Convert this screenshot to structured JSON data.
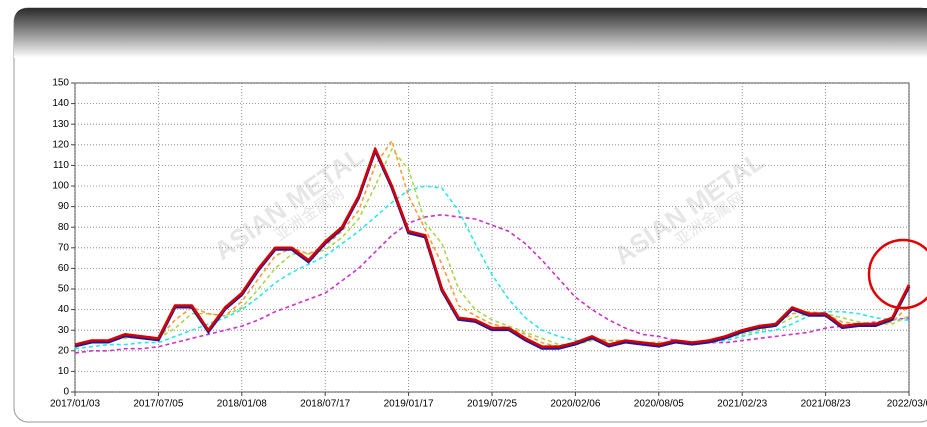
{
  "chart_data": {
    "type": "line",
    "watermark": "ASIAN METAL",
    "watermark_cn": "亚洲金属网",
    "categories": [
      "2017/01/03",
      null,
      null,
      null,
      null,
      "2017/07/05",
      null,
      null,
      null,
      null,
      "2018/01/08",
      null,
      null,
      null,
      null,
      "2018/07/17",
      null,
      null,
      null,
      null,
      "2019/01/17",
      null,
      null,
      null,
      null,
      "2019/07/25",
      null,
      null,
      null,
      null,
      "2020/02/06",
      null,
      null,
      null,
      null,
      "2020/08/05",
      null,
      null,
      null,
      null,
      "2021/02/23",
      null,
      null,
      null,
      null,
      "2021/08/23",
      null,
      null,
      null,
      null,
      "2022/03/0"
    ],
    "ylim": [
      0,
      150
    ],
    "yticks": [
      0,
      10,
      20,
      30,
      40,
      50,
      60,
      70,
      80,
      90,
      100,
      110,
      120,
      130,
      140,
      150
    ],
    "grid": true,
    "series": [
      {
        "color": "#cc33cc",
        "dashed": true,
        "values": [
          19,
          20,
          20,
          21,
          21,
          22,
          24,
          26,
          28,
          30,
          32,
          35,
          39,
          42,
          45,
          48,
          54,
          60,
          68,
          76,
          82,
          85,
          86,
          85,
          84,
          81,
          78,
          72,
          64,
          55,
          46,
          40,
          35,
          31,
          28,
          27,
          25,
          24,
          24,
          24,
          25,
          26,
          27,
          28,
          29,
          31,
          32,
          33,
          34,
          35,
          36
        ]
      },
      {
        "color": "#2ee6e6",
        "dashed": true,
        "values": [
          21,
          22,
          23,
          23,
          24,
          24,
          27,
          30,
          33,
          36,
          40,
          46,
          53,
          58,
          62,
          66,
          72,
          78,
          85,
          92,
          98,
          100,
          99,
          88,
          72,
          57,
          45,
          36,
          30,
          27,
          25,
          25,
          25,
          24,
          24,
          24,
          24,
          24,
          24,
          25,
          27,
          29,
          30,
          33,
          37,
          39,
          39,
          38,
          36,
          35,
          35
        ]
      },
      {
        "color": "#a8d84a",
        "dashed": true,
        "values": [
          22,
          24,
          25,
          26,
          27,
          26,
          31,
          38,
          38,
          37,
          41,
          50,
          60,
          67,
          67,
          69,
          75,
          84,
          100,
          118,
          108,
          82,
          72,
          50,
          40,
          35,
          32,
          29,
          26,
          23,
          23,
          25,
          25,
          25,
          24,
          24,
          24,
          24,
          25,
          26,
          28,
          30,
          32,
          36,
          38,
          38,
          36,
          34,
          33,
          33,
          37
        ]
      },
      {
        "color": "#ff9a3c",
        "dashed": true,
        "values": [
          23,
          24,
          25,
          27,
          27,
          26,
          35,
          41,
          38,
          37,
          44,
          55,
          66,
          70,
          67,
          71,
          78,
          88,
          110,
          122,
          95,
          79,
          62,
          42,
          37,
          33,
          31,
          28,
          24,
          22,
          23,
          26,
          25,
          25,
          24,
          24,
          24,
          24,
          25,
          26,
          29,
          31,
          33,
          38,
          39,
          38,
          34,
          33,
          33,
          34,
          42
        ]
      },
      {
        "color": "#d40000",
        "dashed": false,
        "values": [
          23,
          25,
          25,
          28,
          27,
          26,
          42,
          42,
          30,
          41,
          48,
          60,
          70,
          70,
          64,
          73,
          80,
          95,
          118,
          100,
          78,
          76,
          50,
          36,
          35,
          31,
          31,
          26,
          22,
          22,
          24,
          27,
          23,
          25,
          24,
          23,
          25,
          24,
          25,
          27,
          30,
          32,
          33,
          41,
          38,
          38,
          32,
          33,
          33,
          36,
          52
        ]
      }
    ]
  }
}
